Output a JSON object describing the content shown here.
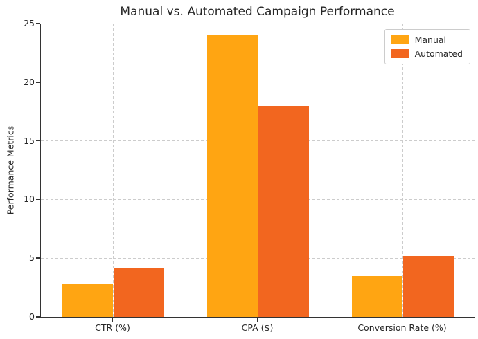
{
  "chart_data": {
    "type": "bar",
    "title": "Manual vs. Automated Campaign Performance",
    "xlabel": "",
    "ylabel": "Performance Metrics",
    "categories": [
      "CTR (%)",
      "CPA ($)",
      "Conversion Rate (%)"
    ],
    "series": [
      {
        "name": "Manual",
        "color": "#FFA512",
        "values": [
          2.8,
          24.0,
          3.5
        ]
      },
      {
        "name": "Automated",
        "color": "#F2661F",
        "values": [
          4.1,
          18.0,
          5.2
        ]
      }
    ],
    "ylim": [
      0,
      25
    ],
    "yticks": [
      0,
      5,
      10,
      15,
      20,
      25
    ],
    "bar_width_frac": 0.35,
    "grid": true,
    "grid_style": "dashed",
    "legend_position": "upper right",
    "colors": {
      "grid": "#cccccc",
      "spine": "#333333",
      "text": "#262626",
      "legend_border": "#cccccc",
      "legend_bg": "#ffffff"
    }
  }
}
